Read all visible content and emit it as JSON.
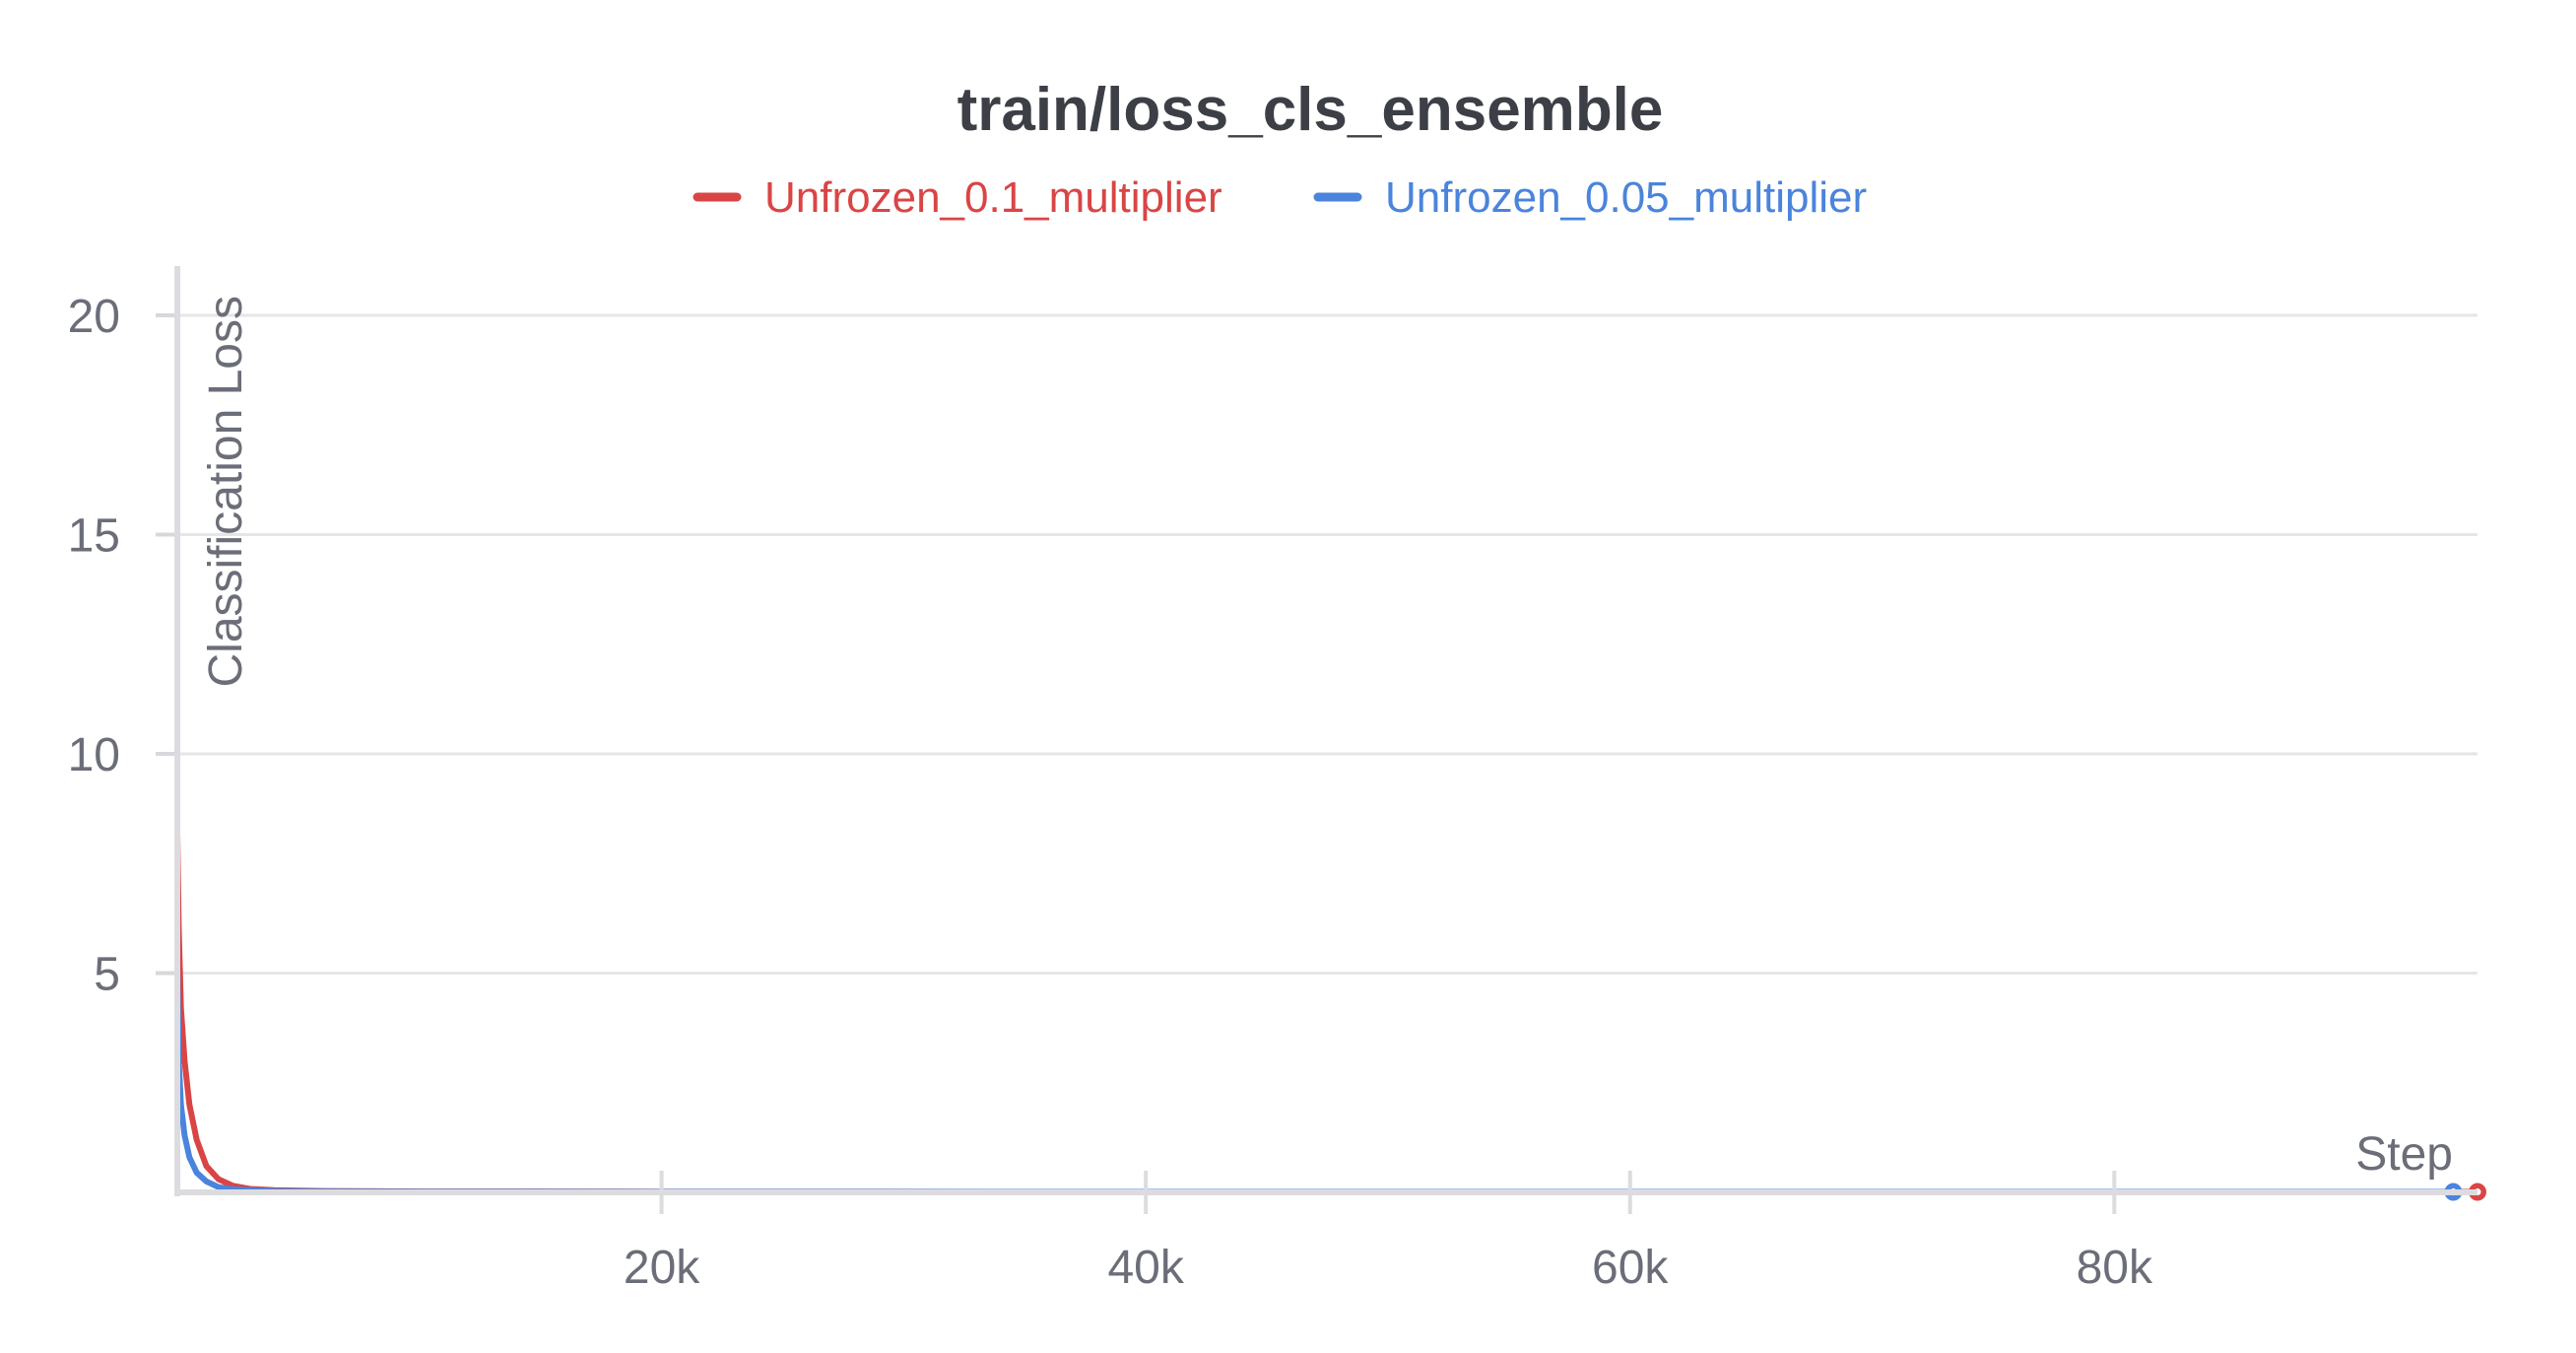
{
  "chart_data": {
    "type": "line",
    "title": "train/loss_cls_ensemble",
    "xlabel": "Step",
    "ylabel": "Classification Loss",
    "xlim": [
      0,
      95000
    ],
    "ylim": [
      0,
      21
    ],
    "x_ticks": [
      {
        "value": 20000,
        "label": "20k"
      },
      {
        "value": 40000,
        "label": "40k"
      },
      {
        "value": 60000,
        "label": "60k"
      },
      {
        "value": 80000,
        "label": "80k"
      }
    ],
    "y_ticks": [
      {
        "value": 5,
        "label": "5"
      },
      {
        "value": 10,
        "label": "10"
      },
      {
        "value": 15,
        "label": "15"
      },
      {
        "value": 20,
        "label": "20"
      }
    ],
    "grid": true,
    "legend_position": "top",
    "series": [
      {
        "name": "Unfrozen_0.1_multiplier",
        "color": "#d94545",
        "x": [
          0,
          60,
          150,
          300,
          500,
          800,
          1200,
          1700,
          2300,
          3000,
          4000,
          6000,
          10000,
          20000,
          40000,
          60000,
          80000,
          95000
        ],
        "y": [
          8.2,
          6.0,
          4.2,
          3.0,
          2.0,
          1.2,
          0.6,
          0.3,
          0.15,
          0.08,
          0.05,
          0.03,
          0.02,
          0.015,
          0.01,
          0.01,
          0.01,
          0.01
        ]
      },
      {
        "name": "Unfrozen_0.05_multiplier",
        "color": "#4a84dc",
        "x": [
          0,
          60,
          150,
          300,
          500,
          800,
          1200,
          1700,
          2300,
          3000,
          4000,
          6000,
          10000,
          20000,
          40000,
          60000,
          80000,
          94000
        ],
        "y": [
          5.2,
          3.0,
          2.0,
          1.3,
          0.8,
          0.45,
          0.25,
          0.12,
          0.07,
          0.05,
          0.03,
          0.02,
          0.015,
          0.01,
          0.01,
          0.01,
          0.01,
          0.01
        ]
      }
    ]
  }
}
